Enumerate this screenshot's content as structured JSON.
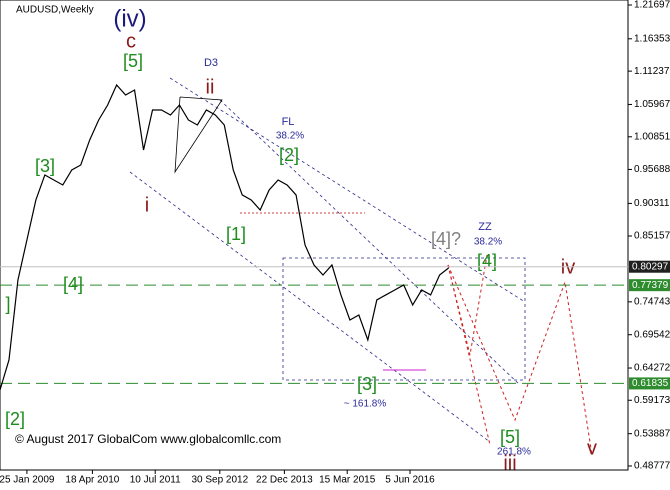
{
  "chart_data": {
    "type": "line",
    "title": "AUDUSD,Weekly",
    "color": "#000000",
    "values": [
      0.608,
      0.6555,
      0.782,
      0.8453,
      0.9086,
      0.9481,
      0.9402,
      0.9323,
      0.956,
      0.9639,
      1.0035,
      1.0351,
      1.0588,
      1.0905,
      1.0746,
      1.0825,
      0.9876,
      1.0509,
      1.0509,
      1.043,
      1.0588,
      1.0351,
      1.0272,
      1.0509,
      1.043,
      1.0272,
      0.956,
      0.9165,
      0.9086,
      0.8927,
      0.9244,
      0.9402,
      0.9323,
      0.9165,
      0.8374,
      0.8057,
      0.7899,
      0.8057,
      0.7583,
      0.7187,
      0.7266,
      0.6871,
      0.7504,
      0.7583,
      0.7662,
      0.7741,
      0.7425,
      0.7662,
      0.7583,
      0.7899,
      0.801
    ],
    "xlim": [
      0,
      70
    ],
    "ylim": [
      0.4814,
      1.2249
    ],
    "xticks": [
      {
        "value": 3,
        "label": "25 Jan 2009"
      },
      {
        "value": 10.3,
        "label": "18 Apr 2010"
      },
      {
        "value": 17.3,
        "label": "10 Jul 2011"
      },
      {
        "value": 24.5,
        "label": "30 Sep 2012"
      },
      {
        "value": 31.7,
        "label": "22 Dec 2013"
      },
      {
        "value": 38.7,
        "label": "15 Mar 2015"
      },
      {
        "value": 45.7,
        "label": "5 Jun 2016"
      }
    ],
    "yticks": [
      1.21697,
      1.16353,
      1.11237,
      1.05967,
      1.00851,
      0.95688,
      0.90311,
      0.85157,
      0.74743,
      0.69542,
      0.64272,
      0.59173,
      0.53887,
      0.48777
    ],
    "levels": [
      {
        "value": 0.80297,
        "color": "#c0c0c0",
        "dashed": false,
        "label_bg": "#202020"
      },
      {
        "value": 0.77379,
        "color": "#2e8b2e",
        "dashed": true,
        "label_bg": "#2e8b2e"
      },
      {
        "value": 0.61835,
        "color": "#2e8b2e",
        "dashed": true,
        "label_bg": "#2e8b2e"
      }
    ],
    "annotations": [
      "(iv)",
      "c",
      "[5]",
      "ii",
      "D3",
      "FL",
      "38.2%",
      "[2]",
      "[3]",
      "i",
      "[1]",
      "[4]",
      "]",
      "[2]",
      "[4]?",
      "ZZ",
      "38.2%",
      "[4]",
      "iv",
      "[3]",
      "~ 161.8%",
      "[5]",
      "iii",
      "261.8%",
      "v"
    ],
    "copyright": "© August 2017 GlobalCom www.globalcomllc.com"
  }
}
